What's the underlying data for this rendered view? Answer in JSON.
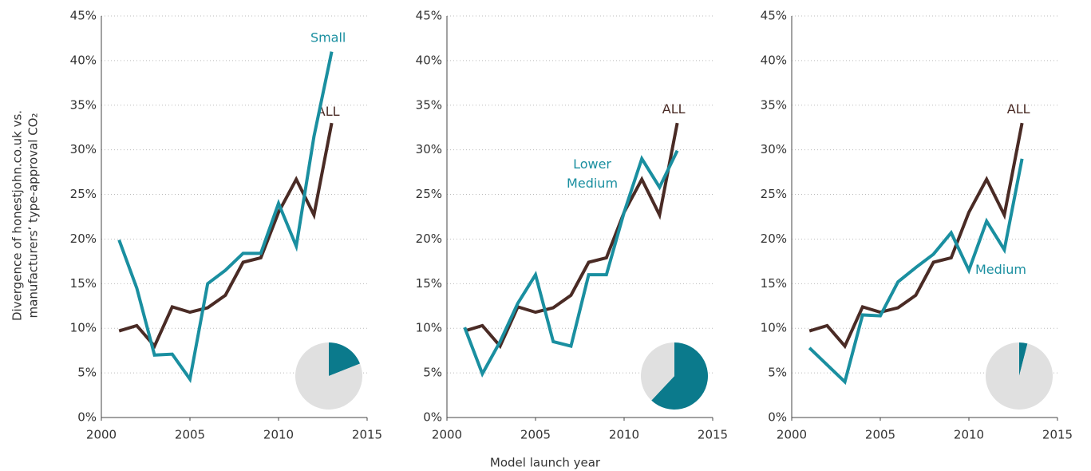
{
  "xlabel": "Model launch year",
  "ylabel": [
    "Divergence of honestjohn.co.uk vs.",
    "manufacturers’ type-approval CO₂"
  ],
  "chart_data": [
    {
      "type": "line",
      "x": [
        2001,
        2002,
        2003,
        2004,
        2005,
        2006,
        2007,
        2008,
        2009,
        2010,
        2011,
        2012,
        2013
      ],
      "series": [
        {
          "name": "ALL",
          "color": "#4a2b25",
          "values": [
            9.7,
            10.3,
            8.0,
            12.4,
            11.8,
            12.3,
            13.7,
            17.4,
            17.9,
            23.0,
            26.7,
            22.7,
            33.0
          ]
        },
        {
          "name": "Small",
          "color": "#1a8fa0",
          "values": [
            19.9,
            14.5,
            7.0,
            7.1,
            4.3,
            15.0,
            16.5,
            18.4,
            18.4,
            24.0,
            19.2,
            31.5,
            41.0
          ]
        }
      ],
      "xlim": [
        2000,
        2015
      ],
      "xticks": [
        2000,
        2005,
        2010,
        2015
      ],
      "ylim": [
        0,
        45
      ],
      "yticks": [
        {
          "value": 0,
          "label": "0%"
        },
        {
          "value": 5,
          "label": "5%"
        },
        {
          "value": 10,
          "label": "10%"
        },
        {
          "value": 15,
          "label": "15%"
        },
        {
          "value": 20,
          "label": "20%"
        },
        {
          "value": 25,
          "label": "25%"
        },
        {
          "value": 30,
          "label": "30%"
        },
        {
          "value": 35,
          "label": "35%"
        },
        {
          "value": 40,
          "label": "40%"
        },
        {
          "value": 45,
          "label": "45%"
        }
      ],
      "grid": true,
      "inset_pie": {
        "values": [
          19,
          81
        ],
        "colors": [
          "#0b7a8c",
          "#e0e0e0"
        ]
      }
    },
    {
      "type": "line",
      "x": [
        2001,
        2002,
        2003,
        2004,
        2005,
        2006,
        2007,
        2008,
        2009,
        2010,
        2011,
        2012,
        2013
      ],
      "series": [
        {
          "name": "ALL",
          "color": "#4a2b25",
          "values": [
            9.7,
            10.3,
            8.0,
            12.4,
            11.8,
            12.3,
            13.7,
            17.4,
            17.9,
            23.0,
            26.7,
            22.7,
            33.0
          ]
        },
        {
          "name": "Lower Medium",
          "color": "#1a8fa0",
          "values": [
            10.1,
            4.9,
            8.5,
            12.8,
            16.0,
            8.5,
            8.0,
            16.0,
            16.0,
            23.0,
            29.0,
            25.8,
            29.9
          ]
        }
      ],
      "xlim": [
        2000,
        2015
      ],
      "xticks": [
        2000,
        2005,
        2010,
        2015
      ],
      "ylim": [
        0,
        45
      ],
      "yticks": [
        {
          "value": 0,
          "label": "0%"
        },
        {
          "value": 5,
          "label": "5%"
        },
        {
          "value": 10,
          "label": "10%"
        },
        {
          "value": 15,
          "label": "15%"
        },
        {
          "value": 20,
          "label": "20%"
        },
        {
          "value": 25,
          "label": "25%"
        },
        {
          "value": 30,
          "label": "30%"
        },
        {
          "value": 35,
          "label": "35%"
        },
        {
          "value": 40,
          "label": "40%"
        },
        {
          "value": 45,
          "label": "45%"
        }
      ],
      "grid": true,
      "inset_pie": {
        "values": [
          62,
          38
        ],
        "colors": [
          "#0b7a8c",
          "#e0e0e0"
        ]
      }
    },
    {
      "type": "line",
      "x": [
        2001,
        2002,
        2003,
        2004,
        2005,
        2006,
        2007,
        2008,
        2009,
        2010,
        2011,
        2012,
        2013
      ],
      "series": [
        {
          "name": "ALL",
          "color": "#4a2b25",
          "values": [
            9.7,
            10.3,
            8.0,
            12.4,
            11.8,
            12.3,
            13.7,
            17.4,
            17.9,
            23.0,
            26.7,
            22.7,
            33.0
          ]
        },
        {
          "name": "Medium",
          "color": "#1a8fa0",
          "values": [
            7.8,
            5.9,
            4.0,
            11.5,
            11.4,
            15.2,
            16.8,
            18.3,
            20.7,
            16.5,
            22.0,
            18.8,
            29.0
          ]
        }
      ],
      "xlim": [
        2000,
        2015
      ],
      "xticks": [
        2000,
        2005,
        2010,
        2015
      ],
      "ylim": [
        0,
        45
      ],
      "yticks": [
        {
          "value": 0,
          "label": "0%"
        },
        {
          "value": 5,
          "label": "5%"
        },
        {
          "value": 10,
          "label": "10%"
        },
        {
          "value": 15,
          "label": "15%"
        },
        {
          "value": 20,
          "label": "20%"
        },
        {
          "value": 25,
          "label": "25%"
        },
        {
          "value": 30,
          "label": "30%"
        },
        {
          "value": 35,
          "label": "35%"
        },
        {
          "value": 40,
          "label": "40%"
        },
        {
          "value": 45,
          "label": "45%"
        }
      ],
      "grid": true,
      "inset_pie": {
        "values": [
          4,
          96
        ],
        "colors": [
          "#0b7a8c",
          "#e0e0e0"
        ]
      }
    }
  ]
}
